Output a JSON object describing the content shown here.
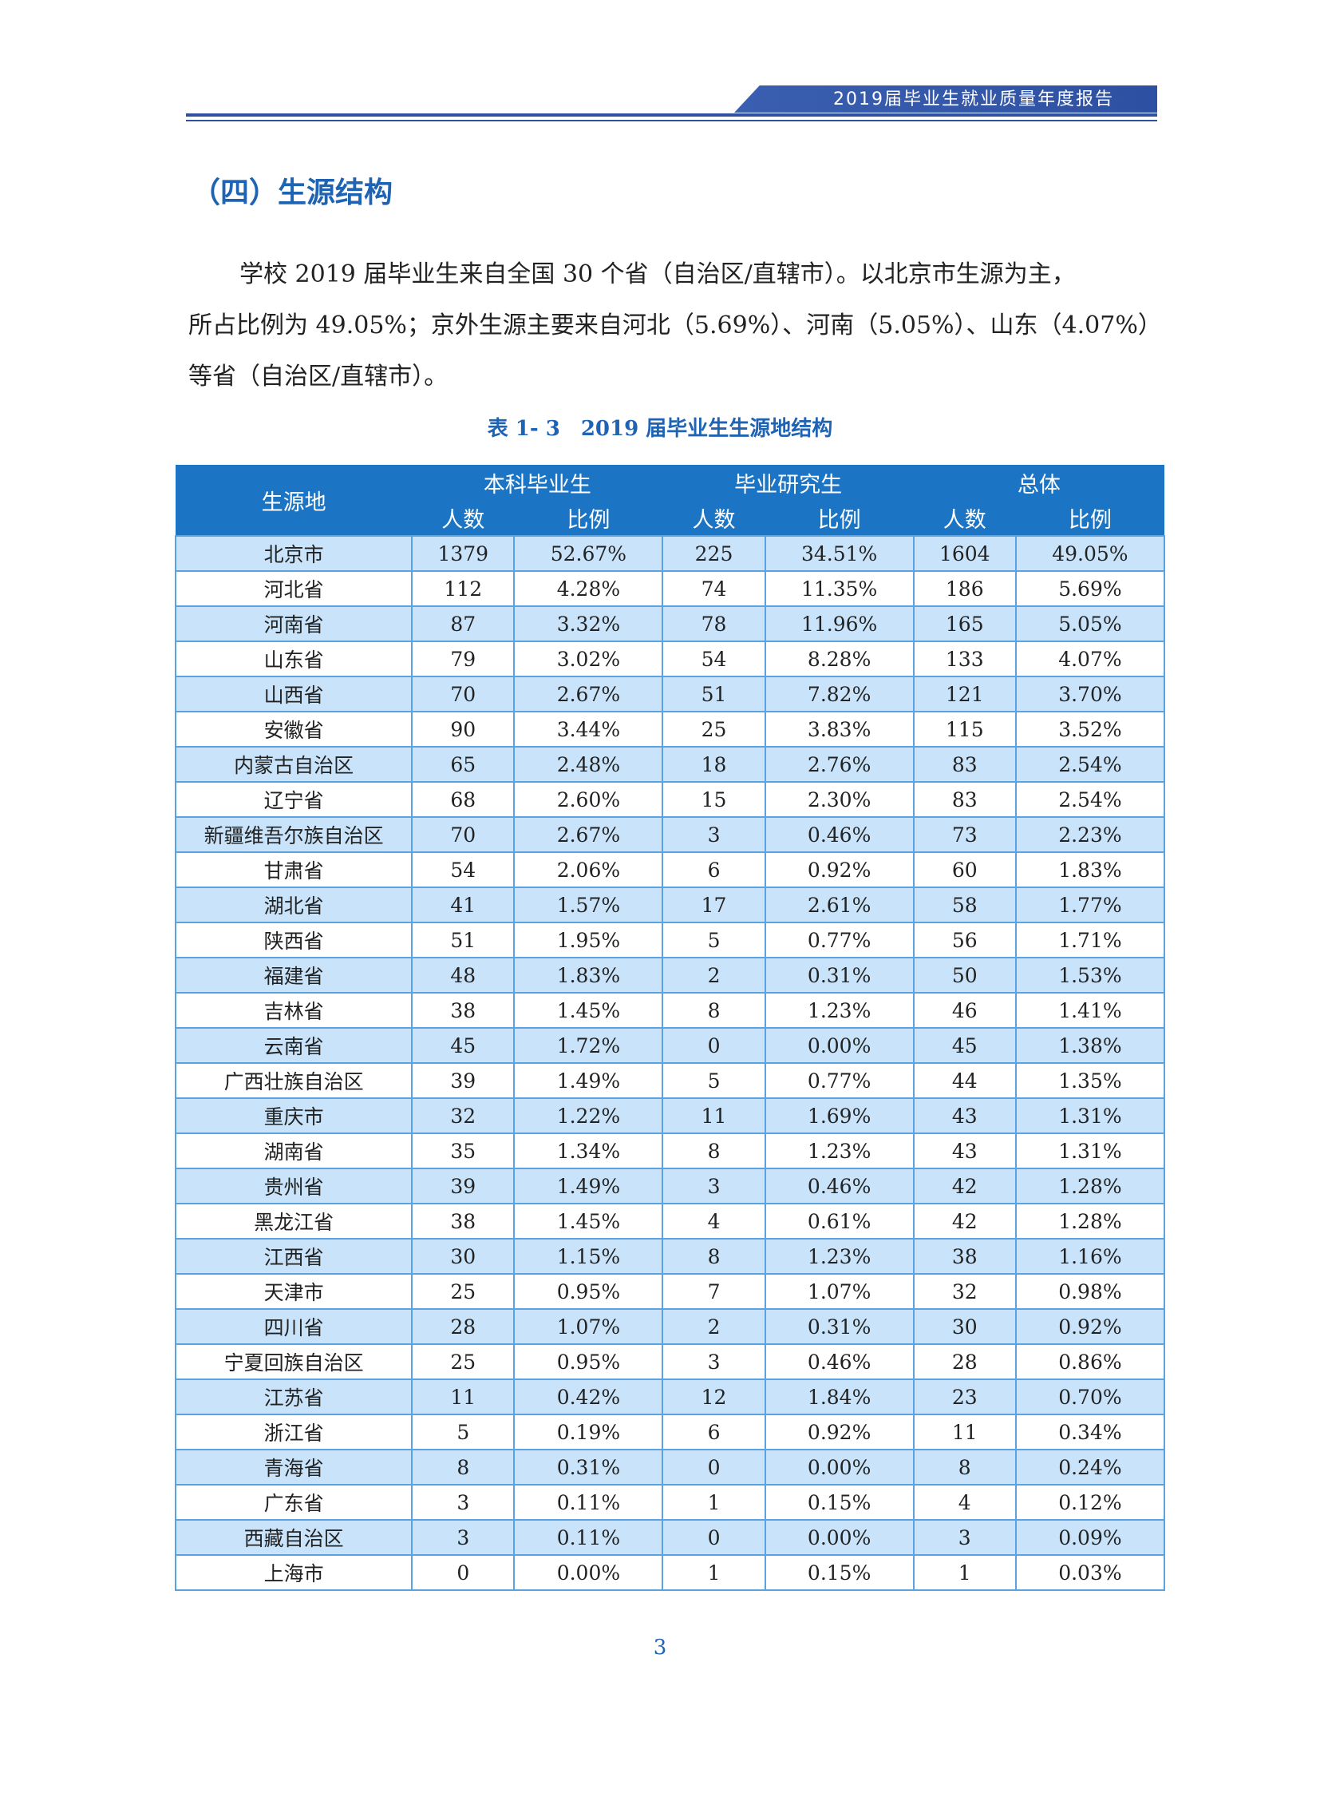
{
  "header": {
    "title": "2019届毕业生就业质量年度报告"
  },
  "section_title": "（四）生源结构",
  "paragraph": {
    "line1": "学校 2019 届毕业生来自全国 30 个省（自治区/直辖市）。以北京市生源为主，",
    "line2": "所占比例为 49.05%；京外生源主要来自河北（5.69%）、河南（5.05%）、山东（4.07%）",
    "line3": "等省（自治区/直辖市）。"
  },
  "table": {
    "caption": "表 1- 3　2019 届毕业生生源地结构",
    "headers": {
      "origin": "生源地",
      "undergrad": "本科毕业生",
      "graduate": "毕业研究生",
      "total": "总体",
      "count": "人数",
      "ratio": "比例"
    },
    "rows": [
      [
        "北京市",
        "1379",
        "52.67%",
        "225",
        "34.51%",
        "1604",
        "49.05%"
      ],
      [
        "河北省",
        "112",
        "4.28%",
        "74",
        "11.35%",
        "186",
        "5.69%"
      ],
      [
        "河南省",
        "87",
        "3.32%",
        "78",
        "11.96%",
        "165",
        "5.05%"
      ],
      [
        "山东省",
        "79",
        "3.02%",
        "54",
        "8.28%",
        "133",
        "4.07%"
      ],
      [
        "山西省",
        "70",
        "2.67%",
        "51",
        "7.82%",
        "121",
        "3.70%"
      ],
      [
        "安徽省",
        "90",
        "3.44%",
        "25",
        "3.83%",
        "115",
        "3.52%"
      ],
      [
        "内蒙古自治区",
        "65",
        "2.48%",
        "18",
        "2.76%",
        "83",
        "2.54%"
      ],
      [
        "辽宁省",
        "68",
        "2.60%",
        "15",
        "2.30%",
        "83",
        "2.54%"
      ],
      [
        "新疆维吾尔族自治区",
        "70",
        "2.67%",
        "3",
        "0.46%",
        "73",
        "2.23%"
      ],
      [
        "甘肃省",
        "54",
        "2.06%",
        "6",
        "0.92%",
        "60",
        "1.83%"
      ],
      [
        "湖北省",
        "41",
        "1.57%",
        "17",
        "2.61%",
        "58",
        "1.77%"
      ],
      [
        "陕西省",
        "51",
        "1.95%",
        "5",
        "0.77%",
        "56",
        "1.71%"
      ],
      [
        "福建省",
        "48",
        "1.83%",
        "2",
        "0.31%",
        "50",
        "1.53%"
      ],
      [
        "吉林省",
        "38",
        "1.45%",
        "8",
        "1.23%",
        "46",
        "1.41%"
      ],
      [
        "云南省",
        "45",
        "1.72%",
        "0",
        "0.00%",
        "45",
        "1.38%"
      ],
      [
        "广西壮族自治区",
        "39",
        "1.49%",
        "5",
        "0.77%",
        "44",
        "1.35%"
      ],
      [
        "重庆市",
        "32",
        "1.22%",
        "11",
        "1.69%",
        "43",
        "1.31%"
      ],
      [
        "湖南省",
        "35",
        "1.34%",
        "8",
        "1.23%",
        "43",
        "1.31%"
      ],
      [
        "贵州省",
        "39",
        "1.49%",
        "3",
        "0.46%",
        "42",
        "1.28%"
      ],
      [
        "黑龙江省",
        "38",
        "1.45%",
        "4",
        "0.61%",
        "42",
        "1.28%"
      ],
      [
        "江西省",
        "30",
        "1.15%",
        "8",
        "1.23%",
        "38",
        "1.16%"
      ],
      [
        "天津市",
        "25",
        "0.95%",
        "7",
        "1.07%",
        "32",
        "0.98%"
      ],
      [
        "四川省",
        "28",
        "1.07%",
        "2",
        "0.31%",
        "30",
        "0.92%"
      ],
      [
        "宁夏回族自治区",
        "25",
        "0.95%",
        "3",
        "0.46%",
        "28",
        "0.86%"
      ],
      [
        "江苏省",
        "11",
        "0.42%",
        "12",
        "1.84%",
        "23",
        "0.70%"
      ],
      [
        "浙江省",
        "5",
        "0.19%",
        "6",
        "0.92%",
        "11",
        "0.34%"
      ],
      [
        "青海省",
        "8",
        "0.31%",
        "0",
        "0.00%",
        "8",
        "0.24%"
      ],
      [
        "广东省",
        "3",
        "0.11%",
        "1",
        "0.15%",
        "4",
        "0.12%"
      ],
      [
        "西藏自治区",
        "3",
        "0.11%",
        "0",
        "0.00%",
        "3",
        "0.09%"
      ],
      [
        "上海市",
        "0",
        "0.00%",
        "1",
        "0.15%",
        "1",
        "0.03%"
      ]
    ]
  },
  "page_number": "3",
  "colors": {
    "accent": "#1f63b3",
    "header_bg": "#1c75c4",
    "row_alt": "#c9e4fa",
    "grid": "#5ba3e0"
  }
}
